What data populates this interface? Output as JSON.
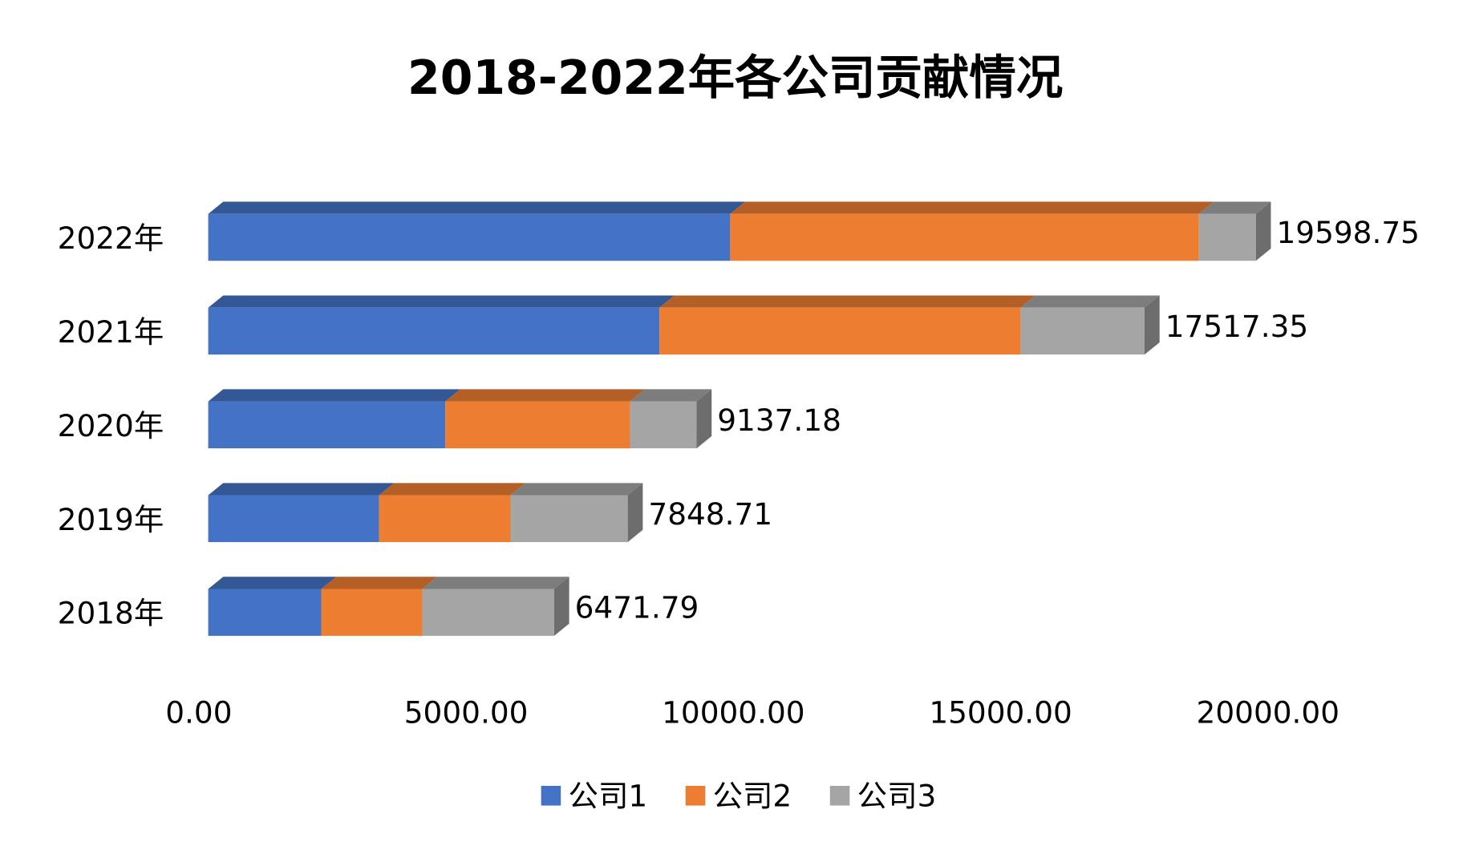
{
  "chart_data": {
    "type": "bar",
    "orientation": "horizontal",
    "stacked": true,
    "style": "3d",
    "title": "2018-2022年各公司贡献情况",
    "categories": [
      "2022年",
      "2021年",
      "2020年",
      "2019年",
      "2018年"
    ],
    "series": [
      {
        "name": "公司1",
        "color": "#4472C4",
        "values": [
          9765,
          8441,
          4435,
          3198,
          2115
        ]
      },
      {
        "name": "公司2",
        "color": "#ED7D31",
        "values": [
          8767,
          6756,
          3456,
          2458,
          1891
        ]
      },
      {
        "name": "公司3",
        "color": "#A5A5A5",
        "values": [
          1067,
          2320,
          1246,
          2193,
          2466
        ]
      }
    ],
    "totals": [
      "19598.75",
      "17517.35",
      "9137.18",
      "7848.71",
      "6471.79"
    ],
    "x_ticks": [
      "0.00",
      "5000.00",
      "10000.00",
      "15000.00",
      "20000.00"
    ],
    "xlim": [
      0,
      20000
    ],
    "grid": false,
    "legend_position": "bottom"
  }
}
